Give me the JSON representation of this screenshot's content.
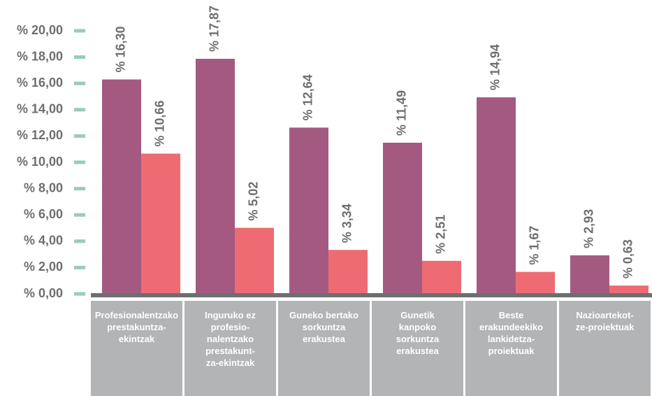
{
  "chart_data": {
    "type": "bar",
    "categories": [
      "Profesionalentzako\nprestakuntza-\nekintzak",
      "Inguruko ez\nprofesio-\nnalentzako\nprestakunt-\nza-ekintzak",
      "Guneko bertako\nsorkuntza\nerakustea",
      "Gunetik\nkanpoko\nsorkuntza\nerakustea",
      "Beste\nerakundeekiko\nlankidetza-\nproiektuak",
      "Nazioartekot-\nze-proiektuak"
    ],
    "series": [
      {
        "color": "#a45a80",
        "values": [
          16.3,
          17.87,
          12.64,
          11.49,
          14.94,
          2.93
        ],
        "value_labels": [
          "% 16,30",
          "% 17,87",
          "% 12,64",
          "% 11,49",
          "% 14,94",
          "% 2,93"
        ]
      },
      {
        "color": "#ee6b73",
        "values": [
          10.66,
          5.02,
          3.34,
          2.51,
          1.67,
          0.63
        ],
        "value_labels": [
          "% 10,66",
          "% 5,02",
          "% 3,34",
          "% 2,51",
          "% 1,67",
          "% 0,63"
        ]
      }
    ],
    "ylim": [
      0,
      20
    ],
    "yticks": [
      {
        "value": 0,
        "label": "% 0,00"
      },
      {
        "value": 2,
        "label": "% 2,00"
      },
      {
        "value": 4,
        "label": "% 4,00"
      },
      {
        "value": 6,
        "label": "% 6,00"
      },
      {
        "value": 8,
        "label": "% 8,00"
      },
      {
        "value": 10,
        "label": "% 10,00"
      },
      {
        "value": 12,
        "label": "% 12,00"
      },
      {
        "value": 14,
        "label": "% 14,00"
      },
      {
        "value": 16,
        "label": "% 16,00"
      },
      {
        "value": 18,
        "label": "% 18,00"
      },
      {
        "value": 20,
        "label": "% 20,00"
      }
    ]
  }
}
